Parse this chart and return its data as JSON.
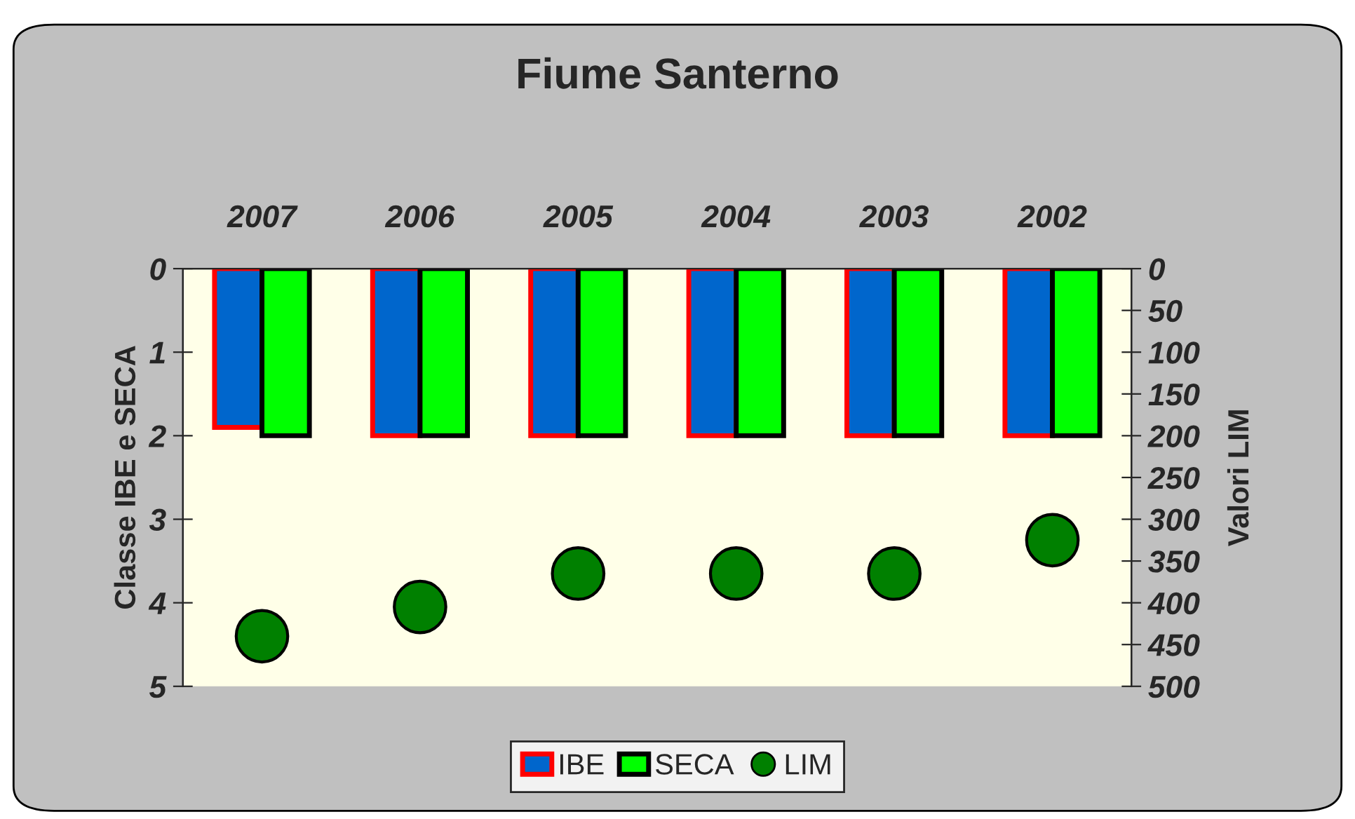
{
  "chart_data": {
    "type": "bar",
    "title": "Fiume Santerno",
    "categories": [
      "2007",
      "2006",
      "2005",
      "2004",
      "2003",
      "2002"
    ],
    "ylabel": "Classe IBE e SECA",
    "y2label": "Valori LIM",
    "ylim": [
      5,
      0
    ],
    "yticks": [
      0,
      1,
      2,
      3,
      4,
      5
    ],
    "y2lim": [
      500,
      0
    ],
    "y2ticks": [
      0,
      50,
      100,
      150,
      200,
      250,
      300,
      350,
      400,
      450,
      500
    ],
    "series": [
      {
        "name": "IBE",
        "color": "#0066cc",
        "values": [
          1.9,
          2,
          2,
          2,
          2,
          2
        ]
      },
      {
        "name": "SECA",
        "color": "#00ff00",
        "values": [
          2,
          2,
          2,
          2,
          2,
          2
        ]
      },
      {
        "name": "LIM",
        "type": "scatter",
        "axis": "y2",
        "color": "#008000",
        "values": [
          440,
          405,
          365,
          365,
          365,
          325
        ]
      }
    ],
    "marker": "circle",
    "grid": false,
    "legend": "bottom"
  }
}
